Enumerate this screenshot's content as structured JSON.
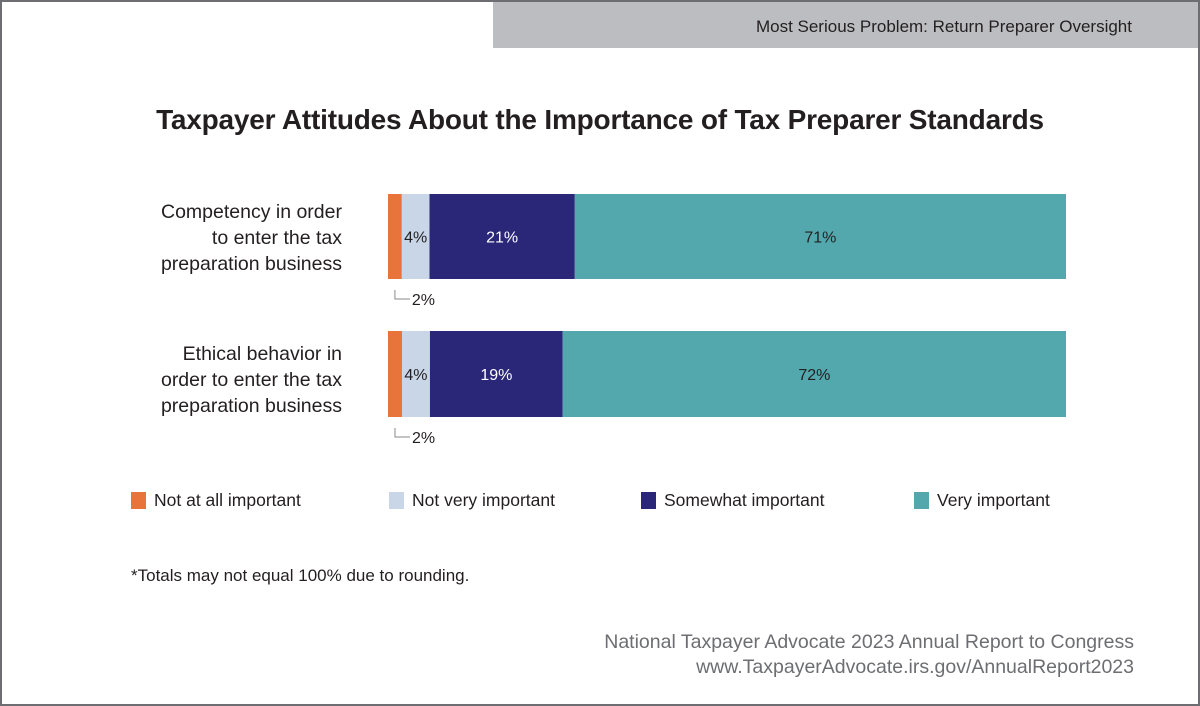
{
  "header": {
    "section": "Most Serious Problem: Return Preparer Oversight"
  },
  "chart_data": {
    "type": "bar",
    "orientation": "horizontal",
    "stacked": true,
    "title": "Taxpayer Attitudes About the Importance of Tax Preparer Standards",
    "categories": [
      "Competency in order to enter the tax preparation business",
      "Ethical behavior in order to enter the tax preparation business"
    ],
    "category_lines": [
      [
        "Competency in order",
        "to enter the tax",
        "preparation business"
      ],
      [
        "Ethical behavior in",
        "order to enter the tax",
        "preparation business"
      ]
    ],
    "series": [
      {
        "name": "Not at all important",
        "color": "#e8743b",
        "values": [
          2,
          2
        ]
      },
      {
        "name": "Not very important",
        "color": "#c8d6e8",
        "values": [
          4,
          4
        ]
      },
      {
        "name": "Somewhat important",
        "color": "#2a2779",
        "values": [
          21,
          19
        ]
      },
      {
        "name": "Very important",
        "color": "#52a8ac",
        "values": [
          71,
          72
        ]
      }
    ],
    "value_suffix": "%",
    "legend": "bottom",
    "xlabel": "",
    "ylabel": "",
    "grid": false
  },
  "footnote": "*Totals may not equal 100% due to rounding.",
  "source": {
    "line1": "National Taxpayer Advocate 2023 Annual Report to Congress",
    "line2": "www.TaxpayerAdvocate.irs.gov/AnnualReport2023"
  }
}
